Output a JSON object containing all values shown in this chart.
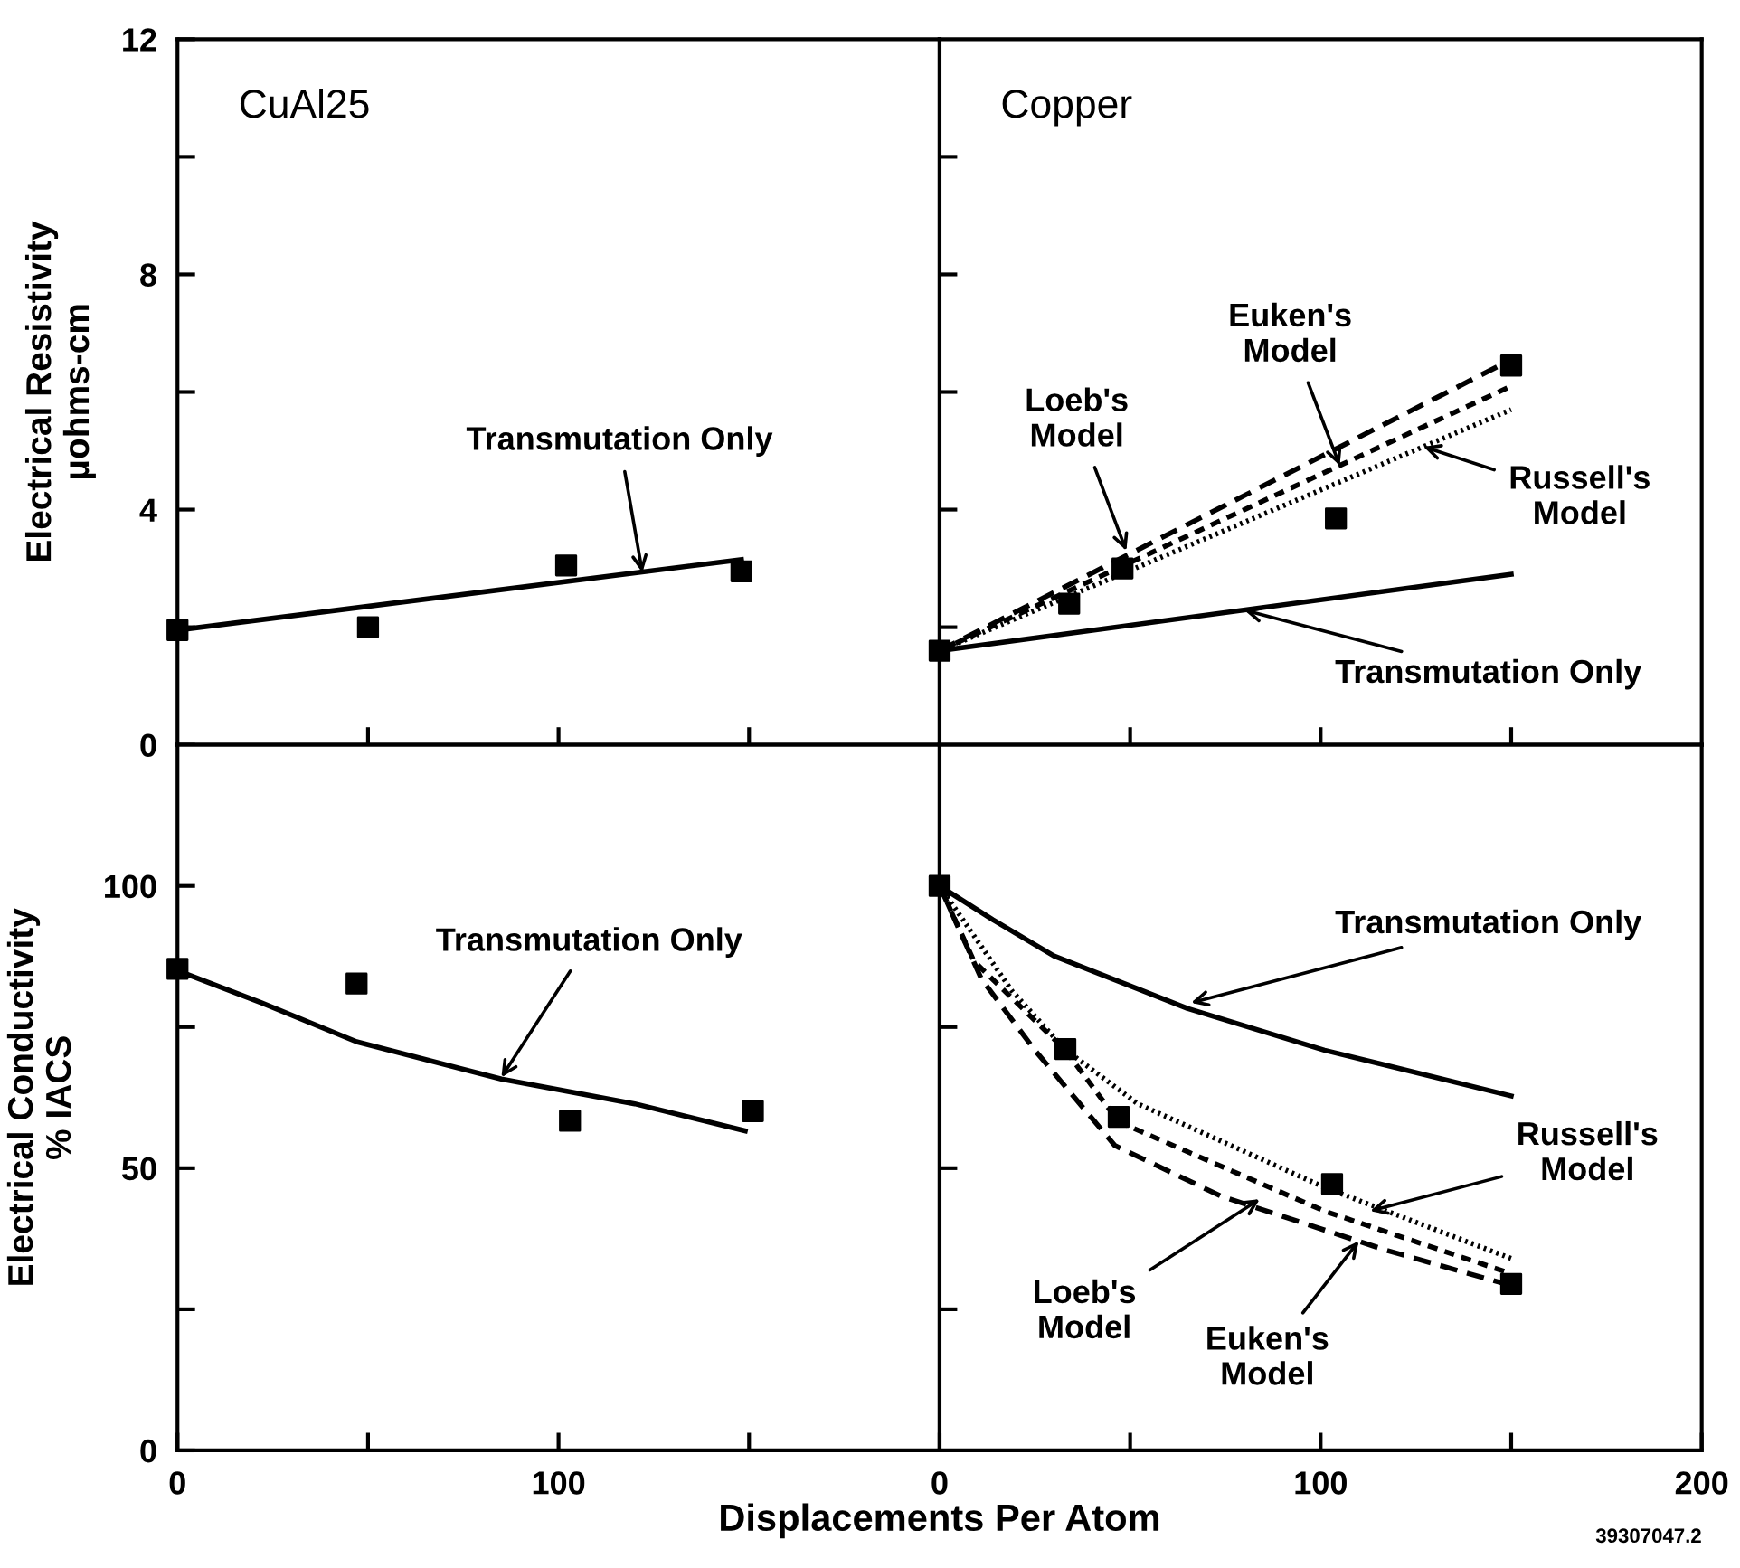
{
  "chart_data": [
    {
      "type": "line",
      "title": "CuAl25",
      "ylabel": "Electrical Resistivity\nμohms-cm",
      "xlim": [
        0,
        200
      ],
      "ylim": [
        0,
        12
      ],
      "xticks": [
        {
          "value": 50,
          "label": null
        },
        {
          "value": 100,
          "label": null
        },
        {
          "value": 150,
          "label": null
        }
      ],
      "yticks": [
        0,
        {
          "value": 2,
          "label": null
        },
        4,
        {
          "value": 6,
          "label": null
        },
        8,
        {
          "value": 10,
          "label": null
        },
        12
      ],
      "tick_labels": "y",
      "grid": false,
      "legend": false,
      "series": [
        {
          "type": "scatter",
          "color": "#000000",
          "marker": "square",
          "x": [
            0,
            50,
            102,
            148
          ],
          "values": [
            1.95,
            2.0,
            3.05,
            2.95
          ]
        },
        {
          "color": "#000000",
          "line_style": "solid",
          "marker": "none",
          "x": [
            0,
            148
          ],
          "values": [
            1.95,
            3.15
          ]
        }
      ],
      "annotations": [
        {
          "text": "Transmutation Only",
          "x": 122,
          "y": 2.93
        }
      ]
    },
    {
      "type": "line",
      "title": "Copper",
      "xlim": [
        0,
        200
      ],
      "ylim": [
        0,
        12
      ],
      "xticks": [
        {
          "value": 50,
          "label": null
        },
        {
          "value": 100,
          "label": null
        },
        {
          "value": 150,
          "label": null
        }
      ],
      "yticks": [
        {
          "value": 2,
          "label": null
        },
        {
          "value": 4,
          "label": null
        },
        {
          "value": 6,
          "label": null
        },
        {
          "value": 8,
          "label": null
        },
        {
          "value": 10,
          "label": null
        }
      ],
      "tick_labels": false,
      "grid": false,
      "legend": false,
      "series": [
        {
          "type": "scatter",
          "color": "#000000",
          "marker": "square",
          "x": [
            0,
            34,
            48,
            104,
            150
          ],
          "values": [
            1.6,
            2.4,
            3.0,
            3.85,
            6.45
          ]
        },
        {
          "color": "#000000",
          "line_style": "solid",
          "marker": "none",
          "x": [
            0,
            150
          ],
          "values": [
            1.6,
            2.9
          ]
        },
        {
          "color": "#000000",
          "line_style": "dashed",
          "marker": "none",
          "x": [
            0,
            150
          ],
          "values": [
            1.6,
            6.55
          ]
        },
        {
          "color": "#000000",
          "line_style": "dashed",
          "marker": "none",
          "x": [
            0,
            150
          ],
          "values": [
            1.6,
            6.1
          ]
        },
        {
          "color": "#000000",
          "line_style": "dotted",
          "marker": "none",
          "x": [
            0,
            150
          ],
          "values": [
            1.6,
            5.7
          ]
        }
      ],
      "annotations": [
        {
          "text": "Loeb's\nModel",
          "x": 49,
          "y": 3.3
        },
        {
          "text": "Euken's\nModel",
          "x": 105,
          "y": 4.75
        },
        {
          "text": "Russell's\nModel",
          "x": 127,
          "y": 5.07
        },
        {
          "text": "Transmutation Only",
          "x": 80,
          "y": 2.29
        }
      ]
    },
    {
      "type": "line",
      "ylabel": "Electrical Conductivity\n% IACS",
      "xlabel": "Displacements Per Atom",
      "xlim": [
        0,
        200
      ],
      "ylim": [
        0,
        125
      ],
      "xticks": [
        0,
        {
          "value": 50,
          "label": null
        },
        100,
        {
          "value": 150,
          "label": null
        }
      ],
      "yticks": [
        0,
        {
          "value": 25,
          "label": null
        },
        50,
        {
          "value": 75,
          "label": null
        },
        100
      ],
      "grid": false,
      "legend": false,
      "series": [
        {
          "type": "scatter",
          "color": "#000000",
          "marker": "square",
          "x": [
            0,
            47,
            103,
            151
          ],
          "values": [
            85.3,
            82.7,
            58.4,
            60.1
          ]
        },
        {
          "color": "#000000",
          "line_style": "solid",
          "marker": "none",
          "x": [
            0,
            22,
            47,
            85,
            120,
            149
          ],
          "values": [
            85,
            79.3,
            72.4,
            65.8,
            61.4,
            56.6
          ]
        }
      ],
      "annotations": [
        {
          "text": "Transmutation Only",
          "x": 85,
          "y": 66.1
        }
      ]
    },
    {
      "type": "line",
      "xlim": [
        0,
        200
      ],
      "ylim": [
        0,
        125
      ],
      "xticks": [
        0,
        {
          "value": 50,
          "label": null
        },
        100,
        {
          "value": 150,
          "label": null
        },
        200
      ],
      "yticks": [
        {
          "value": 25,
          "label": null
        },
        {
          "value": 50,
          "label": null
        },
        {
          "value": 75,
          "label": null
        }
      ],
      "tick_labels": "x",
      "grid": false,
      "legend": false,
      "series": [
        {
          "type": "scatter",
          "color": "#000000",
          "marker": "square",
          "x": [
            0,
            33,
            47,
            103,
            150
          ],
          "values": [
            100,
            71.1,
            59.1,
            47.2,
            29.5
          ]
        },
        {
          "color": "#000000",
          "line_style": "solid",
          "marker": "none",
          "x": [
            0,
            14,
            30,
            65,
            101,
            150
          ],
          "values": [
            100,
            94,
            87.6,
            78.3,
            70.9,
            62.8
          ]
        },
        {
          "color": "#000000",
          "line_style": "dashed",
          "marker": "none",
          "x": [
            0,
            11,
            25,
            46,
            74,
            117,
            150
          ],
          "values": [
            100,
            83.5,
            70.9,
            54,
            45,
            35.5,
            29.2
          ]
        },
        {
          "color": "#000000",
          "line_style": "dashed",
          "marker": "none",
          "x": [
            0,
            9,
            33,
            47,
            101,
            150
          ],
          "values": [
            100,
            86.7,
            70.9,
            58.2,
            42.4,
            31.3
          ]
        },
        {
          "color": "#000000",
          "line_style": "dotted",
          "marker": "none",
          "x": [
            0,
            19,
            33,
            52,
            101,
            150
          ],
          "values": [
            100,
            81.4,
            71,
            61.4,
            46.6,
            34
          ]
        }
      ],
      "annotations": [
        {
          "text": "Transmutation Only",
          "x": 66,
          "y": 79.3
        },
        {
          "text": "Russell's\nModel",
          "x": 113,
          "y": 42.4
        },
        {
          "text": "Loeb's\nModel",
          "x": 84,
          "y": 44.5
        },
        {
          "text": "Euken's\nModel",
          "x": 110,
          "y": 37.1
        },
        "39307047.2"
      ]
    }
  ]
}
